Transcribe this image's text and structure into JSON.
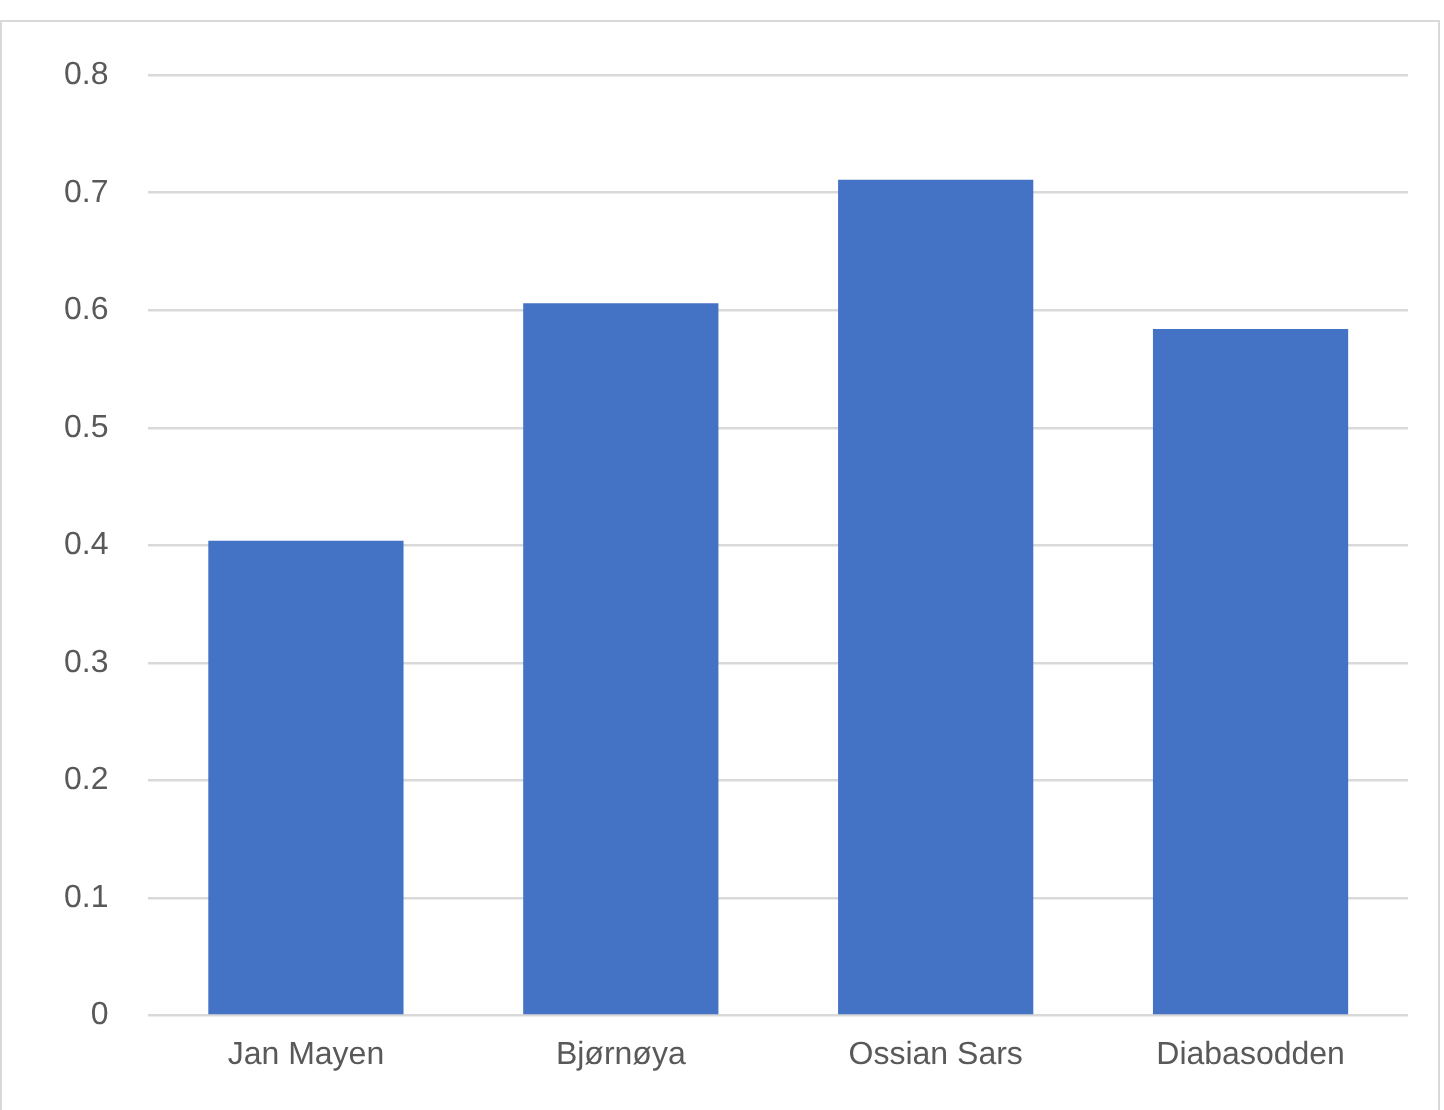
{
  "chart_data": {
    "type": "bar",
    "categories": [
      "Jan Mayen",
      "Bjørnøya",
      "Ossian Sars",
      "Diabasodden"
    ],
    "values": [
      0.404,
      0.606,
      0.711,
      0.584
    ],
    "color": "#4472c4",
    "ylim": [
      0,
      0.8
    ],
    "yticks": [
      0,
      0.1,
      0.2,
      0.3,
      0.4,
      0.5,
      0.6,
      0.7,
      0.8
    ],
    "grid": "y",
    "legend": false
  }
}
